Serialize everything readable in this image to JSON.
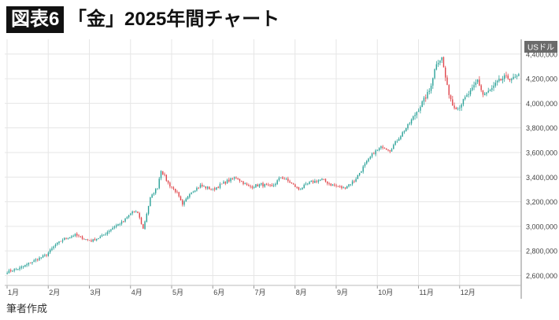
{
  "header": {
    "badge": "図表6",
    "title": "「金」2025年間チャート"
  },
  "footer": {
    "source": "筆者作成"
  },
  "colors": {
    "up": "#2aa198",
    "down": "#e0474c",
    "grid": "#e6e6e6",
    "unit_bg": "#6b6b6b"
  },
  "chart_data": {
    "type": "candlestick",
    "y_unit": "USドル",
    "ylim": [
      2520000,
      4520000
    ],
    "y_ticks": [
      2600000,
      2800000,
      3000000,
      3200000,
      3400000,
      3600000,
      3800000,
      4000000,
      4200000,
      4400000
    ],
    "y_tick_labels": [
      "2,600,000",
      "2,800,000",
      "3,000,000",
      "3,200,000",
      "3,400,000",
      "3,600,000",
      "3,800,000",
      "4,000,000",
      "4,200,000",
      "4,400,000"
    ],
    "x_months": [
      "1月",
      "2月",
      "3月",
      "4月",
      "5月",
      "6月",
      "7月",
      "8月",
      "9月",
      "10月",
      "11月",
      "12月"
    ],
    "anchors": [
      [
        0,
        2630000
      ],
      [
        7,
        2660000
      ],
      [
        15,
        2720000
      ],
      [
        22,
        2770000
      ],
      [
        27,
        2850000
      ],
      [
        32,
        2900000
      ],
      [
        38,
        2930000
      ],
      [
        43,
        2900000
      ],
      [
        47,
        2880000
      ],
      [
        53,
        2920000
      ],
      [
        60,
        3000000
      ],
      [
        65,
        3040000
      ],
      [
        70,
        3120000
      ],
      [
        73,
        3110000
      ],
      [
        76,
        2980000
      ],
      [
        80,
        3230000
      ],
      [
        84,
        3320000
      ],
      [
        86,
        3460000
      ],
      [
        90,
        3350000
      ],
      [
        95,
        3270000
      ],
      [
        98,
        3170000
      ],
      [
        102,
        3270000
      ],
      [
        108,
        3330000
      ],
      [
        115,
        3300000
      ],
      [
        122,
        3360000
      ],
      [
        128,
        3400000
      ],
      [
        135,
        3320000
      ],
      [
        142,
        3340000
      ],
      [
        148,
        3320000
      ],
      [
        153,
        3400000
      ],
      [
        158,
        3360000
      ],
      [
        163,
        3300000
      ],
      [
        170,
        3360000
      ],
      [
        176,
        3380000
      ],
      [
        181,
        3340000
      ],
      [
        188,
        3310000
      ],
      [
        194,
        3370000
      ],
      [
        199,
        3480000
      ],
      [
        205,
        3600000
      ],
      [
        210,
        3650000
      ],
      [
        214,
        3620000
      ],
      [
        219,
        3720000
      ],
      [
        225,
        3840000
      ],
      [
        231,
        3980000
      ],
      [
        236,
        4100000
      ],
      [
        240,
        4330000
      ],
      [
        243,
        4370000
      ],
      [
        246,
        4130000
      ],
      [
        249,
        3990000
      ],
      [
        252,
        3960000
      ],
      [
        256,
        4040000
      ],
      [
        260,
        4110000
      ],
      [
        263,
        4190000
      ],
      [
        266,
        4070000
      ],
      [
        270,
        4100000
      ],
      [
        274,
        4170000
      ],
      [
        278,
        4210000
      ],
      [
        283,
        4200000
      ],
      [
        286,
        4220000
      ]
    ]
  }
}
